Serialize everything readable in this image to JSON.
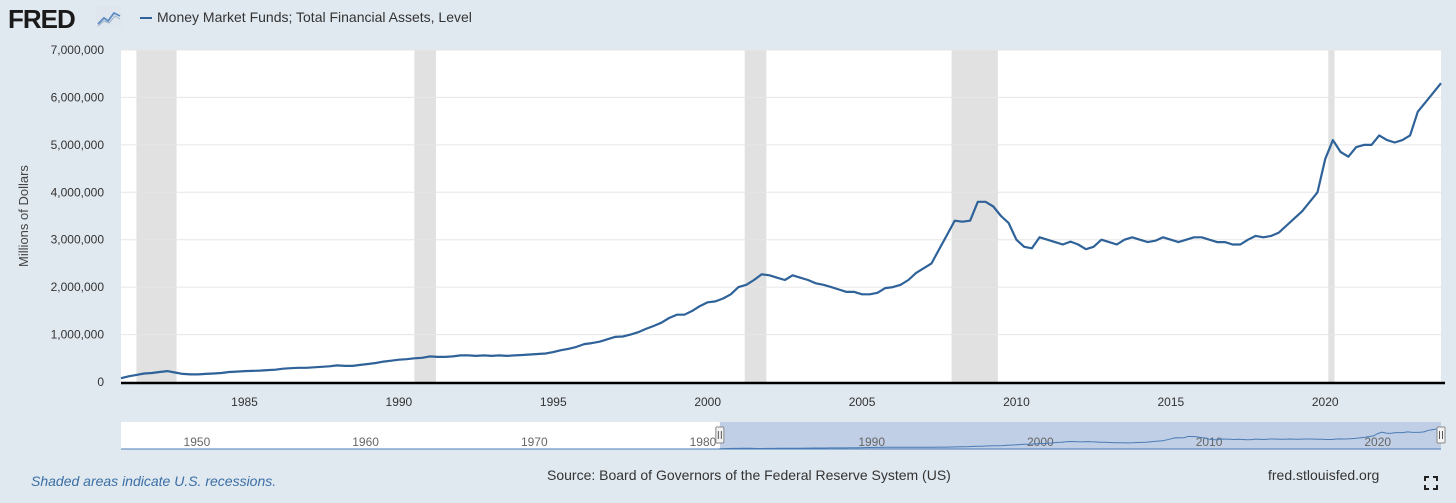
{
  "header": {
    "logo_text": "FRED",
    "logo_icon": "trend-chart-icon",
    "legend_label": "Money Market Funds; Total Financial Assets, Level"
  },
  "footer": {
    "note": "Shaded areas indicate U.S. recessions.",
    "source": "Source: Board of Governors of the Federal Reserve System (US)",
    "url": "fred.stlouisfed.org",
    "fullscreen_icon": "fullscreen-icon"
  },
  "colors": {
    "background": "#e1e9f0",
    "plot_bg": "#ffffff",
    "series": "#2f6299",
    "recession": "#e1e1e1",
    "navigator_fill": "#c0cfe6",
    "axis": "#000000",
    "note": "#3a6ea5"
  },
  "navigator": {
    "labels": [
      "1950",
      "1960",
      "1970",
      "1980",
      "1990",
      "2000",
      "2010",
      "2020"
    ],
    "label_years": [
      1950,
      1960,
      1970,
      1980,
      1990,
      2000,
      2010,
      2020
    ],
    "range": [
      1945.5,
      2023.75
    ],
    "selected": [
      1981,
      2023.75
    ]
  },
  "chart_data": {
    "type": "line",
    "title": "",
    "xlabel": "",
    "ylabel": "Millions of Dollars",
    "xlim": [
      1981.0,
      2023.75
    ],
    "ylim": [
      0,
      7000000
    ],
    "yticks": [
      0,
      1000000,
      2000000,
      3000000,
      4000000,
      5000000,
      6000000,
      7000000
    ],
    "ytick_labels": [
      "0",
      "1,000,000",
      "2,000,000",
      "3,000,000",
      "4,000,000",
      "5,000,000",
      "6,000,000",
      "7,000,000"
    ],
    "xticks": [
      1985,
      1990,
      1995,
      2000,
      2005,
      2010,
      2015,
      2020
    ],
    "xtick_labels": [
      "1985",
      "1990",
      "1995",
      "2000",
      "2005",
      "2010",
      "2015",
      "2020"
    ],
    "recessions": [
      [
        1981.5,
        1982.8
      ],
      [
        1990.5,
        1991.2
      ],
      [
        2001.2,
        2001.9
      ],
      [
        2007.9,
        2009.4
      ],
      [
        2020.1,
        2020.3
      ]
    ],
    "grid": true,
    "series": [
      {
        "name": "Money Market Funds; Total Financial Assets, Level",
        "x": [
          1981.0,
          1981.25,
          1981.5,
          1981.75,
          1982.0,
          1982.25,
          1982.5,
          1982.75,
          1983.0,
          1983.25,
          1983.5,
          1983.75,
          1984.0,
          1984.25,
          1984.5,
          1984.75,
          1985.0,
          1985.25,
          1985.5,
          1985.75,
          1986.0,
          1986.25,
          1986.5,
          1986.75,
          1987.0,
          1987.25,
          1987.5,
          1987.75,
          1988.0,
          1988.25,
          1988.5,
          1988.75,
          1989.0,
          1989.25,
          1989.5,
          1989.75,
          1990.0,
          1990.25,
          1990.5,
          1990.75,
          1991.0,
          1991.25,
          1991.5,
          1991.75,
          1992.0,
          1992.25,
          1992.5,
          1992.75,
          1993.0,
          1993.25,
          1993.5,
          1993.75,
          1994.0,
          1994.25,
          1994.5,
          1994.75,
          1995.0,
          1995.25,
          1995.5,
          1995.75,
          1996.0,
          1996.25,
          1996.5,
          1996.75,
          1997.0,
          1997.25,
          1997.5,
          1997.75,
          1998.0,
          1998.25,
          1998.5,
          1998.75,
          1999.0,
          1999.25,
          1999.5,
          1999.75,
          2000.0,
          2000.25,
          2000.5,
          2000.75,
          2001.0,
          2001.25,
          2001.5,
          2001.75,
          2002.0,
          2002.25,
          2002.5,
          2002.75,
          2003.0,
          2003.25,
          2003.5,
          2003.75,
          2004.0,
          2004.25,
          2004.5,
          2004.75,
          2005.0,
          2005.25,
          2005.5,
          2005.75,
          2006.0,
          2006.25,
          2006.5,
          2006.75,
          2007.0,
          2007.25,
          2007.5,
          2007.75,
          2008.0,
          2008.25,
          2008.5,
          2008.75,
          2009.0,
          2009.25,
          2009.5,
          2009.75,
          2010.0,
          2010.25,
          2010.5,
          2010.75,
          2011.0,
          2011.25,
          2011.5,
          2011.75,
          2012.0,
          2012.25,
          2012.5,
          2012.75,
          2013.0,
          2013.25,
          2013.5,
          2013.75,
          2014.0,
          2014.25,
          2014.5,
          2014.75,
          2015.0,
          2015.25,
          2015.5,
          2015.75,
          2016.0,
          2016.25,
          2016.5,
          2016.75,
          2017.0,
          2017.25,
          2017.5,
          2017.75,
          2018.0,
          2018.25,
          2018.5,
          2018.75,
          2019.0,
          2019.25,
          2019.5,
          2019.75,
          2020.0,
          2020.25,
          2020.5,
          2020.75,
          2021.0,
          2021.25,
          2021.5,
          2021.75,
          2022.0,
          2022.25,
          2022.5,
          2022.75,
          2023.0,
          2023.25,
          2023.5,
          2023.75
        ],
        "y": [
          80000,
          120000,
          150000,
          180000,
          190000,
          210000,
          230000,
          200000,
          170000,
          160000,
          160000,
          170000,
          180000,
          190000,
          210000,
          220000,
          230000,
          235000,
          240000,
          250000,
          260000,
          280000,
          290000,
          300000,
          300000,
          310000,
          320000,
          330000,
          350000,
          340000,
          340000,
          360000,
          380000,
          400000,
          430000,
          450000,
          470000,
          480000,
          500000,
          510000,
          540000,
          530000,
          530000,
          540000,
          560000,
          560000,
          550000,
          560000,
          550000,
          560000,
          550000,
          560000,
          570000,
          580000,
          590000,
          600000,
          630000,
          670000,
          700000,
          740000,
          800000,
          820000,
          850000,
          900000,
          950000,
          960000,
          1000000,
          1050000,
          1120000,
          1180000,
          1250000,
          1350000,
          1420000,
          1420000,
          1500000,
          1600000,
          1680000,
          1700000,
          1760000,
          1850000,
          2000000,
          2050000,
          2150000,
          2270000,
          2250000,
          2200000,
          2150000,
          2250000,
          2200000,
          2150000,
          2080000,
          2050000,
          2000000,
          1950000,
          1900000,
          1900000,
          1850000,
          1850000,
          1880000,
          1980000,
          2000000,
          2050000,
          2150000,
          2300000,
          2400000,
          2500000,
          2800000,
          3100000,
          3400000,
          3380000,
          3400000,
          3800000,
          3800000,
          3700000,
          3500000,
          3350000,
          3000000,
          2850000,
          2820000,
          3050000,
          3000000,
          2950000,
          2900000,
          2960000,
          2900000,
          2800000,
          2850000,
          3000000,
          2950000,
          2900000,
          3000000,
          3050000,
          3000000,
          2950000,
          2980000,
          3050000,
          3000000,
          2950000,
          3000000,
          3050000,
          3050000,
          3000000,
          2950000,
          2950000,
          2900000,
          2900000,
          3000000,
          3080000,
          3050000,
          3080000,
          3150000,
          3300000,
          3450000,
          3600000,
          3800000,
          4000000,
          4700000,
          5100000,
          4850000,
          4750000,
          4950000,
          5000000,
          5000000,
          5200000,
          5100000,
          5050000,
          5100000,
          5200000,
          5700000,
          5900000,
          6100000,
          6300000
        ]
      }
    ]
  }
}
